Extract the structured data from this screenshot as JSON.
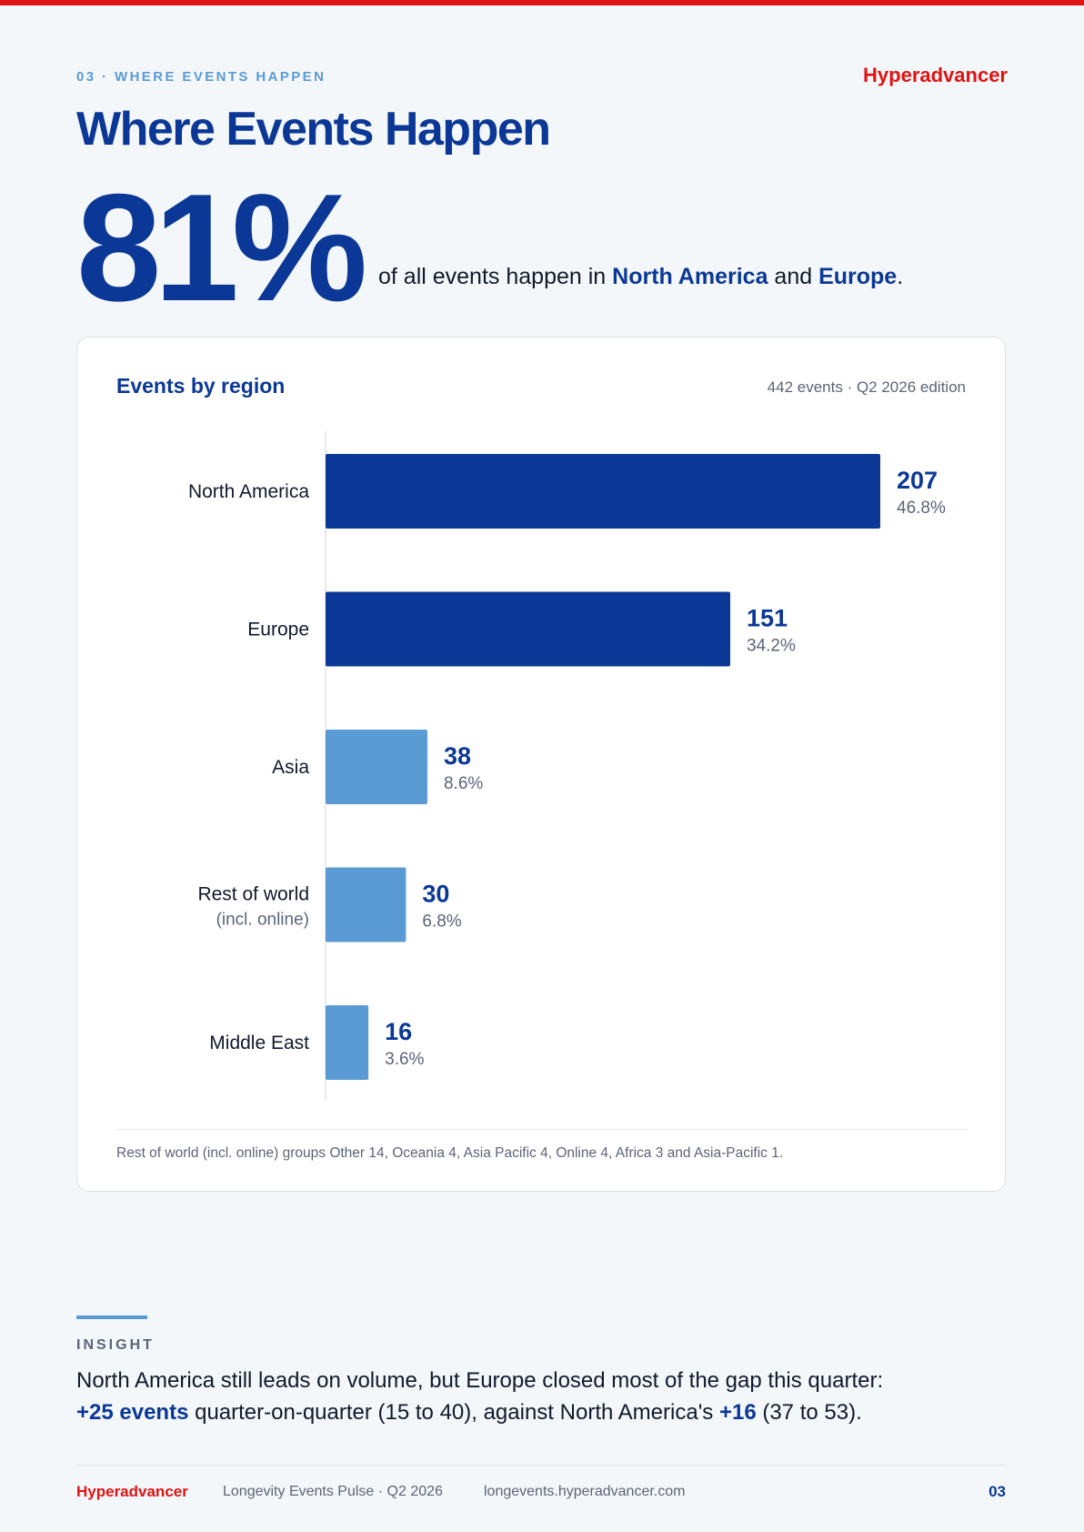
{
  "header": {
    "eyebrow": "03 · WHERE EVENTS HAPPEN",
    "brand": "Hyperadvancer",
    "title": "Where Events Happen"
  },
  "stat": {
    "value": "81%",
    "pre": "of all events happen in ",
    "hl1": "North America",
    "mid": " and ",
    "hl2": "Europe",
    "post": "."
  },
  "card": {
    "title": "Events by region",
    "meta": "442 events · Q2 2026 edition",
    "note": "Rest of world (incl. online) groups Other 14, Oceania 4, Asia Pacific 4, Online 4, Africa 3 and Asia-Pacific 1."
  },
  "chart_data": {
    "type": "bar",
    "orientation": "horizontal",
    "categories": [
      "North America",
      "Europe",
      "Asia",
      "Rest of world",
      "Middle East"
    ],
    "category_sublabels": [
      "",
      "",
      "",
      "(incl. online)",
      ""
    ],
    "values": [
      207,
      151,
      38,
      30,
      16
    ],
    "percent_labels": [
      "46.8%",
      "34.2%",
      "8.6%",
      "6.8%",
      "3.6%"
    ],
    "xlim": [
      0,
      207
    ],
    "grid": false,
    "colors": [
      "#0b3896",
      "#0b3896",
      "#5b9bd5",
      "#5b9bd5",
      "#5b9bd5"
    ]
  },
  "insight": {
    "label": "INSIGHT",
    "line1": "North America still leads on volume, but Europe closed most of the gap this quarter:",
    "hl1": "+25 events",
    "mid": " quarter-on-quarter (15 to 40), against North America's ",
    "hl2": "+16",
    "post": " (37 to 53)."
  },
  "footer": {
    "brand": "Hyperadvancer",
    "publication": "Longevity Events Pulse · Q2 2026",
    "url": "longevents.hyperadvancer.com",
    "page": "03"
  },
  "colors": {
    "accent_red": "#e01313",
    "primary_blue": "#0b3896",
    "light_blue": "#5b9bd5"
  }
}
